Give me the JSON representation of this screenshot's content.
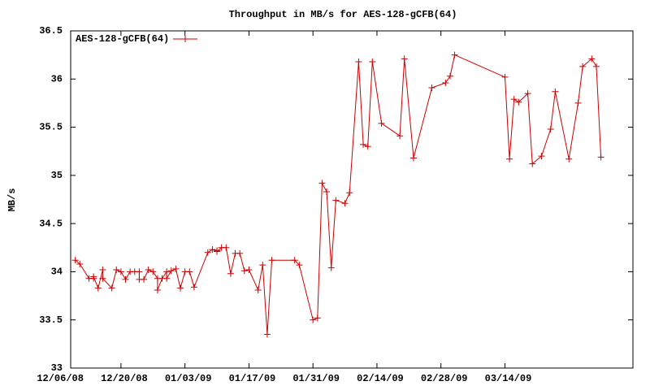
{
  "chart_data": {
    "type": "line",
    "title": "Throughput in MB/s for AES-128-gCFB(64)",
    "y_label": "MB/s",
    "legend": "top-left",
    "series": [
      {
        "name": "AES-128-gCFB(64)",
        "color": "#cc0000",
        "x": [
          "12/10/08",
          "12/11/08",
          "12/13/08",
          "12/14/08",
          "12/14/08",
          "12/15/08",
          "12/16/08",
          "12/16/08",
          "12/18/08",
          "12/19/08",
          "12/20/08",
          "12/21/08",
          "12/22/08",
          "12/23/08",
          "12/24/08",
          "12/24/08",
          "12/25/08",
          "12/26/08",
          "12/27/08",
          "12/28/08",
          "12/28/08",
          "12/29/08",
          "12/30/08",
          "12/30/08",
          "12/31/08",
          "01/01/09",
          "01/02/09",
          "01/03/09",
          "01/04/09",
          "01/05/09",
          "01/08/09",
          "01/09/09",
          "01/10/09",
          "01/10/09",
          "01/11/09",
          "01/12/09",
          "01/13/09",
          "01/14/09",
          "01/15/09",
          "01/16/09",
          "01/17/09",
          "01/19/09",
          "01/20/09",
          "01/21/09",
          "01/22/09",
          "01/27/09",
          "01/28/09",
          "01/31/09",
          "02/01/09",
          "02/02/09",
          "02/03/09",
          "02/04/09",
          "02/05/09",
          "02/07/09",
          "02/08/09",
          "02/10/09",
          "02/11/09",
          "02/12/09",
          "02/13/09",
          "02/15/09",
          "02/19/09",
          "02/20/09",
          "02/22/09",
          "02/26/09",
          "03/01/09",
          "03/02/09",
          "03/03/09",
          "03/14/09",
          "03/15/09",
          "03/16/09",
          "03/17/09",
          "03/19/09",
          "03/20/09",
          "03/22/09",
          "03/24/09",
          "03/25/09",
          "03/28/09",
          "03/30/09",
          "03/31/09",
          "04/02/09",
          "04/03/09",
          "04/04/09"
        ],
        "values": [
          34.12,
          34.08,
          33.93,
          33.93,
          33.95,
          33.83,
          34.02,
          33.93,
          33.83,
          34.02,
          34.0,
          33.92,
          34.0,
          34.0,
          34.0,
          33.92,
          33.92,
          34.02,
          34.0,
          33.93,
          33.81,
          33.93,
          34.0,
          33.93,
          34.01,
          34.03,
          33.83,
          34.0,
          34.0,
          33.84,
          34.2,
          34.23,
          34.22,
          34.21,
          34.25,
          34.25,
          33.98,
          34.19,
          34.19,
          34.01,
          34.02,
          33.81,
          34.07,
          33.35,
          34.12,
          34.12,
          34.07,
          33.5,
          33.52,
          34.92,
          34.83,
          34.04,
          34.74,
          34.71,
          34.82,
          36.18,
          35.32,
          35.3,
          36.18,
          35.54,
          35.41,
          36.21,
          35.18,
          35.91,
          35.96,
          36.03,
          36.25,
          36.02,
          35.17,
          35.79,
          35.76,
          35.85,
          35.12,
          35.2,
          35.48,
          35.87,
          35.17,
          35.75,
          36.13,
          36.21,
          36.13,
          35.19
        ]
      }
    ],
    "xlim": [
      "12/09/08",
      "04/11/09"
    ],
    "xticks": [
      "12/06/08",
      "12/20/08",
      "01/03/09",
      "01/17/09",
      "01/31/09",
      "02/14/09",
      "02/28/09",
      "03/14/09"
    ],
    "ylim": [
      33,
      36.5
    ],
    "yticks": [
      33,
      33.5,
      34,
      34.5,
      35,
      35.5,
      36,
      36.5
    ]
  }
}
